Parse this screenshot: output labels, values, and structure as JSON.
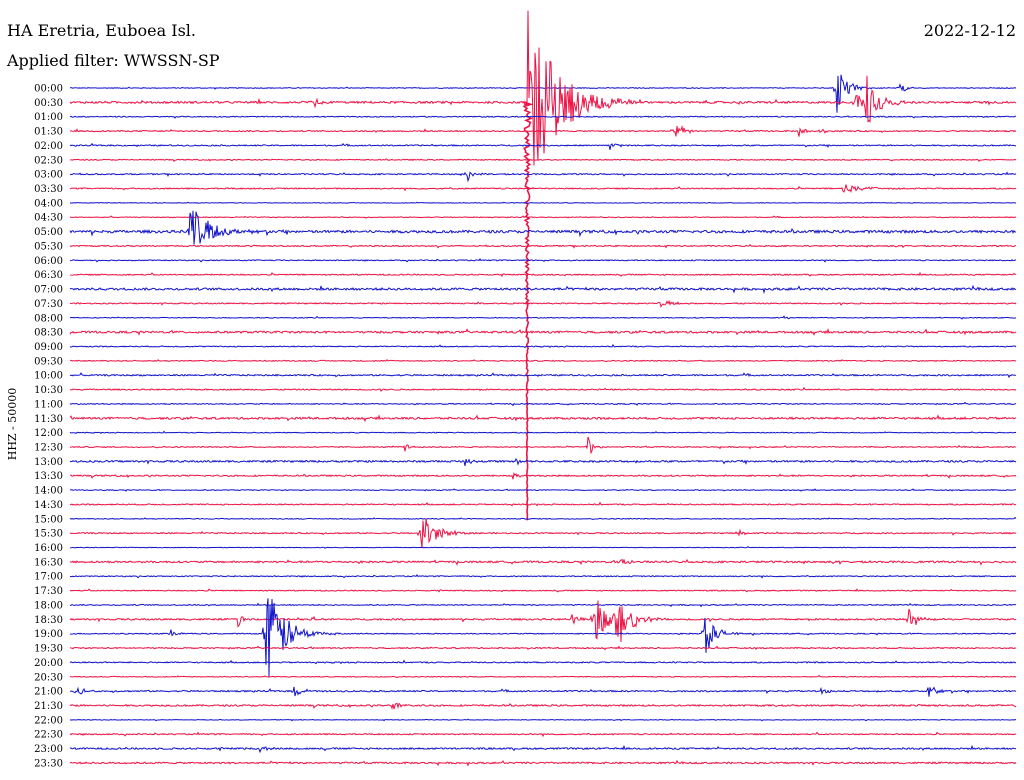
{
  "header": {
    "station": "HA Eretria, Euboea Isl.",
    "filter": "Applied filter: WWSSN-SP",
    "date": "2022-12-12"
  },
  "colors": {
    "trace_a": "#1111cc",
    "trace_b": "#ee1144",
    "text": "#000000"
  },
  "chart_data": {
    "type": "line",
    "title": "HA Eretria, Euboea Isl.",
    "subtitle": "Applied filter: WWSSN-SP",
    "date": "2022-12-12",
    "ylabel": "HHZ - 50000",
    "xlabel": "",
    "grid": false,
    "series_colors_alternate": [
      "#1111cc",
      "#ee1144"
    ],
    "row_labels": [
      "00:00",
      "00:30",
      "01:00",
      "01:30",
      "02:00",
      "02:30",
      "03:00",
      "03:30",
      "04:00",
      "04:30",
      "05:00",
      "05:30",
      "06:00",
      "06:30",
      "07:00",
      "07:30",
      "08:00",
      "08:30",
      "09:00",
      "09:30",
      "10:00",
      "10:30",
      "11:00",
      "11:30",
      "12:00",
      "12:30",
      "13:00",
      "13:30",
      "14:00",
      "14:30",
      "15:00",
      "15:30",
      "16:00",
      "16:30",
      "17:00",
      "17:30",
      "18:00",
      "18:30",
      "19:00",
      "19:30",
      "20:00",
      "20:30",
      "21:00",
      "21:30",
      "22:00",
      "22:30",
      "23:00",
      "23:30"
    ],
    "row_noise": [
      0.4,
      1.0,
      0.5,
      0.6,
      0.6,
      0.5,
      0.6,
      0.6,
      0.3,
      0.4,
      1.3,
      0.6,
      0.5,
      0.6,
      1.1,
      0.6,
      0.4,
      1.0,
      0.5,
      0.5,
      0.7,
      0.6,
      0.5,
      1.0,
      0.4,
      0.5,
      0.9,
      0.7,
      0.4,
      0.6,
      0.4,
      0.6,
      0.3,
      0.9,
      0.5,
      0.5,
      0.5,
      0.8,
      0.5,
      0.6,
      0.6,
      0.4,
      0.7,
      0.8,
      0.3,
      0.6,
      0.8,
      0.8
    ],
    "events": [
      {
        "row": 1,
        "minute": 14.5,
        "amp": 95,
        "dur": 2.6,
        "neg": 420
      },
      {
        "row": 1,
        "minute": 7.7,
        "amp": 7,
        "dur": 0.5
      },
      {
        "row": 1,
        "minute": 16.0,
        "amp": 4,
        "dur": 0.6
      },
      {
        "row": 0,
        "minute": 24.3,
        "amp": 30,
        "dur": 0.8
      },
      {
        "row": 1,
        "minute": 25.2,
        "amp": 38,
        "dur": 0.9
      },
      {
        "row": 1,
        "minute": 24.9,
        "amp": 12,
        "dur": 0.6
      },
      {
        "row": 0,
        "minute": 26.3,
        "amp": 10,
        "dur": 0.4
      },
      {
        "row": 3,
        "minute": 19.2,
        "amp": 9,
        "dur": 0.7
      },
      {
        "row": 3,
        "minute": 23.1,
        "amp": 7,
        "dur": 0.5
      },
      {
        "row": 3,
        "minute": 23.8,
        "amp": 6,
        "dur": 0.4
      },
      {
        "row": 4,
        "minute": 17.1,
        "amp": 5,
        "dur": 0.6
      },
      {
        "row": 6,
        "minute": 12.6,
        "amp": 8,
        "dur": 0.5
      },
      {
        "row": 7,
        "minute": 24.5,
        "amp": 6,
        "dur": 1.4
      },
      {
        "row": 10,
        "minute": 3.8,
        "amp": 30,
        "dur": 1.6
      },
      {
        "row": 15,
        "minute": 18.7,
        "amp": 5,
        "dur": 1.0
      },
      {
        "row": 16,
        "minute": 22.6,
        "amp": 4,
        "dur": 0.4
      },
      {
        "row": 25,
        "minute": 16.4,
        "amp": 12,
        "dur": 0.5
      },
      {
        "row": 25,
        "minute": 10.6,
        "amp": 5,
        "dur": 0.4
      },
      {
        "row": 26,
        "minute": 12.5,
        "amp": 5,
        "dur": 0.5
      },
      {
        "row": 26,
        "minute": 14.1,
        "amp": 4,
        "dur": 0.4
      },
      {
        "row": 27,
        "minute": 14.0,
        "amp": 5,
        "dur": 0.4
      },
      {
        "row": 31,
        "minute": 11.1,
        "amp": 24,
        "dur": 1.2
      },
      {
        "row": 31,
        "minute": 21.2,
        "amp": 5,
        "dur": 0.4
      },
      {
        "row": 33,
        "minute": 17.4,
        "amp": 5,
        "dur": 0.7
      },
      {
        "row": 37,
        "minute": 5.3,
        "amp": 10,
        "dur": 0.4
      },
      {
        "row": 37,
        "minute": 7.6,
        "amp": 5,
        "dur": 0.4
      },
      {
        "row": 37,
        "minute": 15.9,
        "amp": 7,
        "dur": 0.5
      },
      {
        "row": 37,
        "minute": 16.6,
        "amp": 30,
        "dur": 1.0
      },
      {
        "row": 37,
        "minute": 17.3,
        "amp": 34,
        "dur": 1.2
      },
      {
        "row": 37,
        "minute": 26.6,
        "amp": 12,
        "dur": 0.5
      },
      {
        "row": 38,
        "minute": 6.2,
        "amp": 55,
        "dur": 1.5
      },
      {
        "row": 38,
        "minute": 20.1,
        "amp": 25,
        "dur": 0.9
      },
      {
        "row": 38,
        "minute": 3.2,
        "amp": 4,
        "dur": 0.4
      },
      {
        "row": 42,
        "minute": 0.2,
        "amp": 8,
        "dur": 0.5
      },
      {
        "row": 42,
        "minute": 7.1,
        "amp": 6,
        "dur": 0.7
      },
      {
        "row": 42,
        "minute": 23.8,
        "amp": 4,
        "dur": 0.6
      },
      {
        "row": 42,
        "minute": 27.2,
        "amp": 8,
        "dur": 0.7
      },
      {
        "row": 43,
        "minute": 10.2,
        "amp": 6,
        "dur": 0.6
      },
      {
        "row": 46,
        "minute": 6.0,
        "amp": 4,
        "dur": 0.5
      }
    ]
  }
}
